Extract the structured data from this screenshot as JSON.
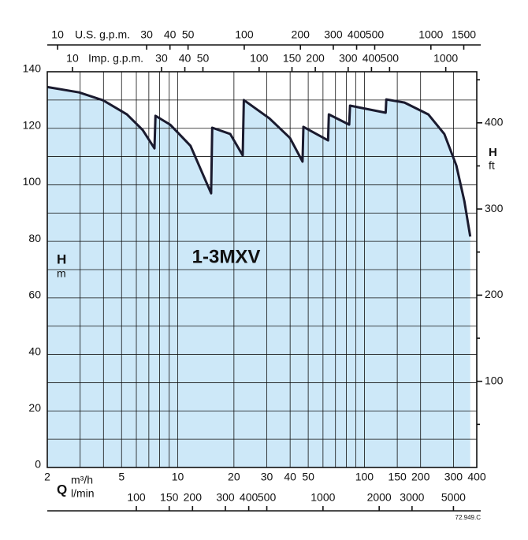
{
  "chart_data": {
    "type": "line",
    "title": "1-3MXV",
    "x": [
      2,
      2.96,
      3.98,
      5.34,
      6.49,
      7.5,
      7.6,
      9.1,
      11.7,
      15.1,
      15.3,
      19.1,
      22.3,
      22.6,
      31,
      39.9,
      46.6,
      47.1,
      63.9,
      64.5,
      82.9,
      83.8,
      130,
      131,
      164,
      220,
      268,
      311,
      343,
      369
    ],
    "series": [
      {
        "color": "#1a1a2e",
        "fill": "#cde8f8",
        "values": [
          134.6,
          132.7,
          129.9,
          124.9,
          119.4,
          112.9,
          124.4,
          121.3,
          113.8,
          97.0,
          120.2,
          118.0,
          110.4,
          130.0,
          123.5,
          116.6,
          108.2,
          120.5,
          115.7,
          124.9,
          121.3,
          128.0,
          125.5,
          130.2,
          129.1,
          124.9,
          118.0,
          106.8,
          94.3,
          81.7
        ]
      }
    ],
    "xlog": true,
    "xlim": [
      2,
      400
    ],
    "xticks": [
      2,
      5,
      10,
      20,
      30,
      40,
      50,
      100,
      150,
      200,
      300,
      400
    ],
    "xminor_ticks": [
      3,
      4,
      6,
      7,
      8,
      9,
      60,
      70,
      80,
      90
    ],
    "xlabel_q": "Q",
    "xlabel": "m³/h",
    "ylim": [
      0,
      140
    ],
    "yticks": [
      0,
      20,
      40,
      60,
      80,
      100,
      120,
      140
    ],
    "yminor_ticks": [
      10,
      30,
      50,
      70,
      90,
      110,
      130
    ],
    "ylabel": "H",
    "yunit": "m",
    "y2lim": [
      0,
      459.3
    ],
    "y2ticks": [
      100,
      200,
      300,
      400
    ],
    "y2minor_ticks": [
      50,
      150,
      250,
      350,
      450
    ],
    "y2label": "H",
    "y2unit": "ft",
    "bottom_axis2": {
      "label": "l/min",
      "xlim": [
        33.33,
        6667
      ],
      "xticks": [
        100,
        150,
        200,
        300,
        400,
        500,
        1000,
        2000,
        3000,
        5000
      ]
    },
    "top_axes": [
      {
        "label": "U.S. g.p.m.",
        "xlim": [
          8.806,
          1761
        ],
        "xticks": [
          10,
          30,
          40,
          50,
          100,
          200,
          300,
          400,
          500,
          1000,
          1500
        ]
      },
      {
        "label": "Imp. g.p.m.",
        "xlim": [
          7.33,
          1466
        ],
        "xticks": [
          10,
          30,
          40,
          50,
          100,
          150,
          200,
          300,
          400,
          500,
          1000
        ]
      }
    ],
    "grid": true,
    "code": "72.949.C"
  }
}
